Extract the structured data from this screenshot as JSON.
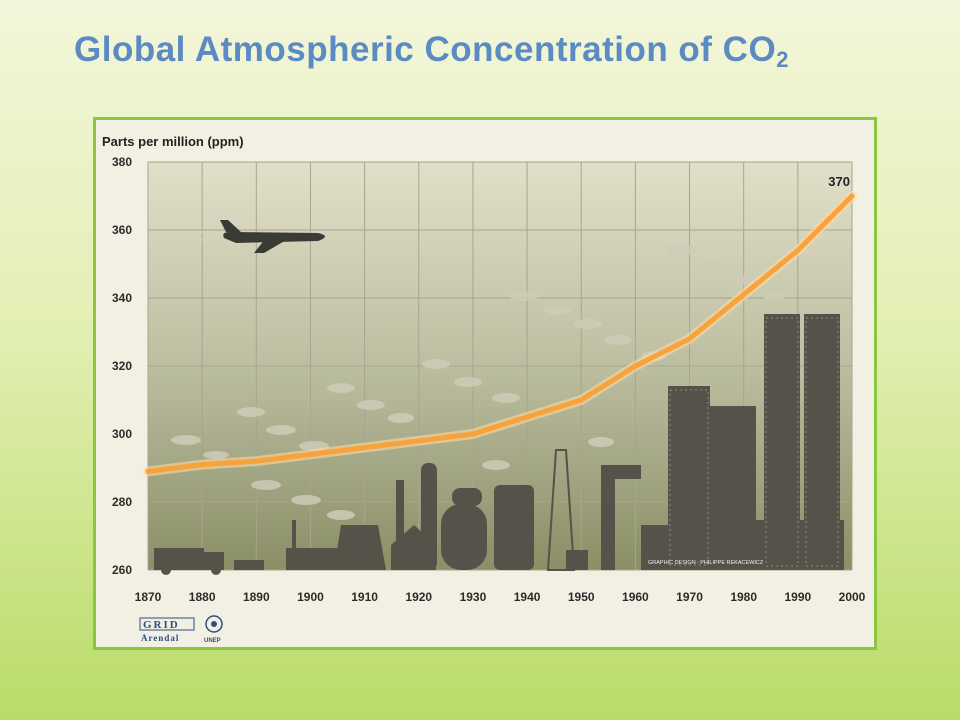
{
  "slide": {
    "title": "Global Atmospheric Concentration of CO",
    "title_subscript": "2"
  },
  "chart_data": {
    "type": "line",
    "unit_label": "Parts per million (ppm)",
    "x": [
      1870,
      1880,
      1890,
      1900,
      1910,
      1920,
      1930,
      1940,
      1950,
      1960,
      1970,
      1980,
      1990,
      2000
    ],
    "series": [
      {
        "values": [
          289,
          291,
          292,
          294,
          296,
          298,
          300,
          305,
          310,
          320,
          328,
          341,
          354,
          370
        ]
      }
    ],
    "x_ticks": [
      "1870",
      "1880",
      "1890",
      "1900",
      "1910",
      "1920",
      "1930",
      "1940",
      "1950",
      "1960",
      "1970",
      "1980",
      "1990",
      "2000"
    ],
    "y_ticks": [
      "260",
      "280",
      "300",
      "320",
      "340",
      "360",
      "380"
    ],
    "xlim": [
      1870,
      2000
    ],
    "ylim": [
      260,
      380
    ],
    "end_label": "370",
    "grid": true,
    "line_color": "#f7a23b",
    "credit_text": "GRAPHIC DESIGN : PHILIPPE REKACEWICZ"
  },
  "logos": {
    "grid_text": "GRID",
    "arendal_text": "Arendal",
    "unep_text": "UNEP"
  }
}
